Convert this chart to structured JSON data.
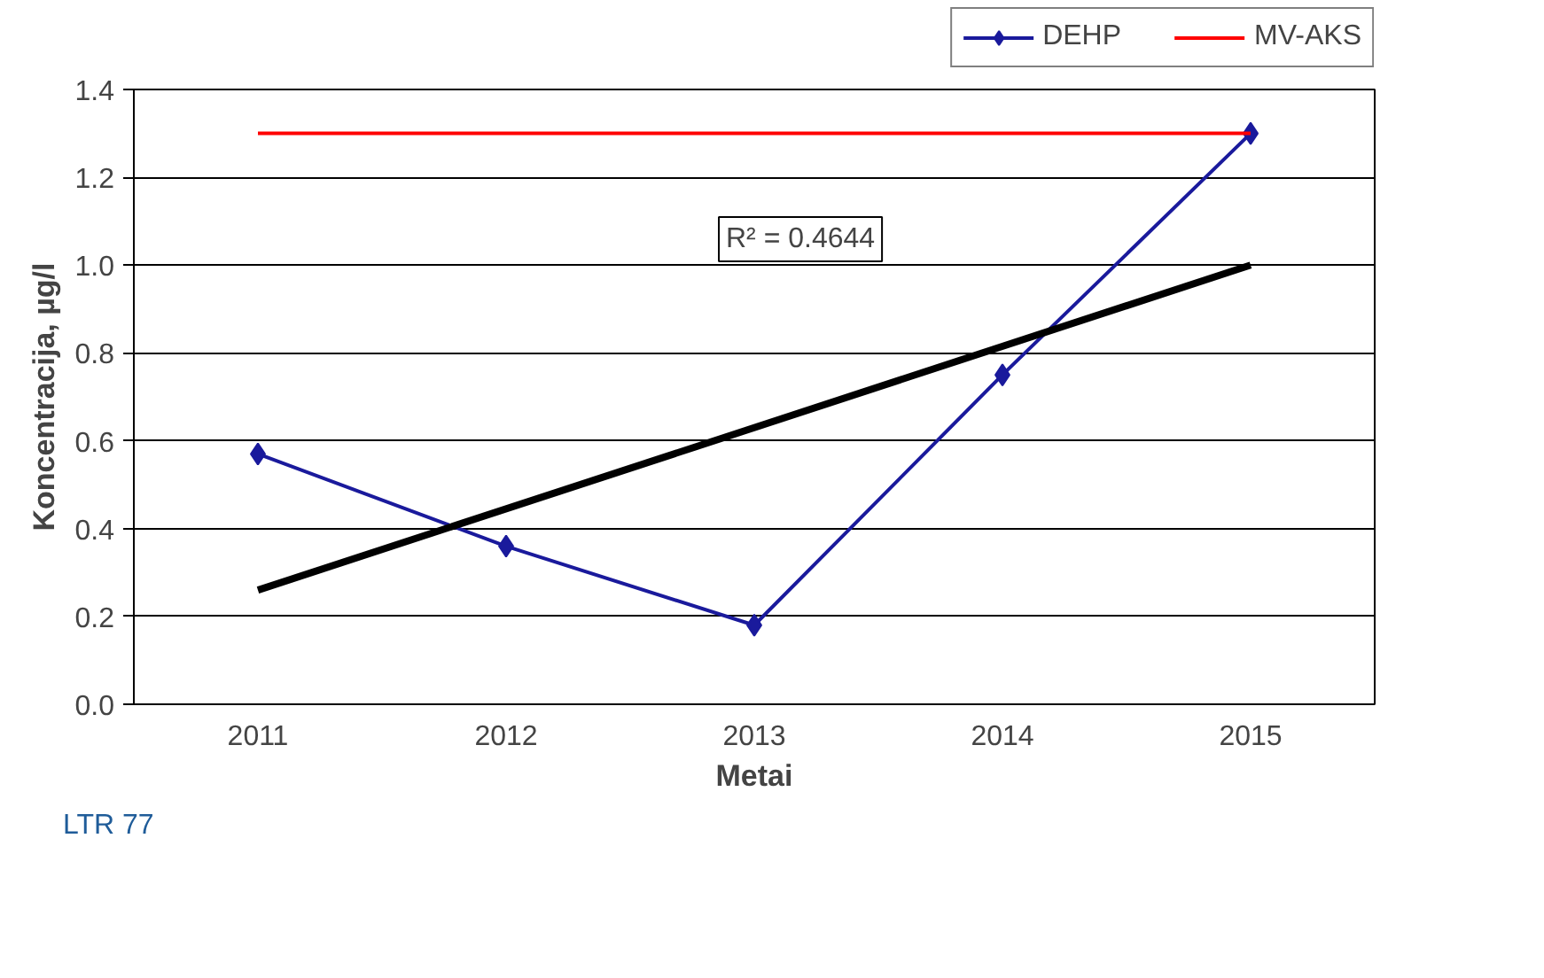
{
  "chart_data": {
    "type": "line",
    "xlabel": "Metai",
    "ylabel": "Koncentracija, µg/l",
    "categories": [
      "2011",
      "2012",
      "2013",
      "2014",
      "2015"
    ],
    "series": [
      {
        "name": "DEHP",
        "color": "#1a1a9c",
        "values": [
          0.57,
          0.36,
          0.18,
          0.75,
          1.3
        ],
        "marker": "diamond"
      },
      {
        "name": "MV-AKS",
        "color": "#ff0000",
        "values": [
          1.3,
          1.3,
          1.3,
          1.3,
          1.3
        ],
        "marker": "none"
      },
      {
        "color": "#000000",
        "values": [
          0.26,
          null,
          null,
          null,
          1.0
        ],
        "marker": "none"
      }
    ],
    "ylim": [
      0,
      1.4
    ],
    "yticks": [
      {
        "value": 0,
        "label": "0.0"
      },
      {
        "value": 0.2,
        "label": "0.2"
      },
      {
        "value": 0.4,
        "label": "0.4"
      },
      {
        "value": 0.6,
        "label": "0.6"
      },
      {
        "value": 0.8,
        "label": "0.8"
      },
      {
        "value": 1.0,
        "label": "1.0"
      },
      {
        "value": 1.2,
        "label": "1.2"
      },
      {
        "value": 1.4,
        "label": "1.4"
      }
    ],
    "grid": "y",
    "legend": "top right",
    "annotations": [
      "R² = 0.4644",
      "LTR 77"
    ]
  }
}
